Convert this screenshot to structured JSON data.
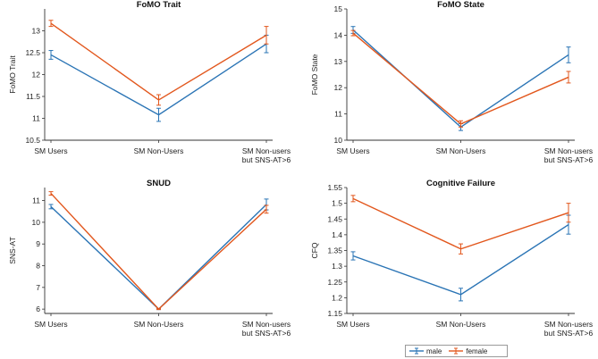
{
  "chart_data": [
    {
      "type": "line",
      "title": "FoMO Trait",
      "ylabel": "FoMO Trait",
      "categories": [
        "SM Users",
        "SM Non-Users",
        "SM Non-users|but SNS-AT>6"
      ],
      "ylim": [
        10.5,
        13.5
      ],
      "yticks": [
        10.5,
        11,
        11.5,
        12,
        12.5,
        13
      ],
      "series": [
        {
          "name": "male",
          "values": [
            12.45,
            11.08,
            12.7
          ],
          "errors": [
            0.1,
            0.15,
            0.2
          ]
        },
        {
          "name": "female",
          "values": [
            13.17,
            11.42,
            12.9
          ],
          "errors": [
            0.07,
            0.12,
            0.2
          ]
        }
      ]
    },
    {
      "type": "line",
      "title": "FoMO State",
      "ylabel": "FoMO State",
      "categories": [
        "SM Users",
        "SM Non-Users",
        "SM Non-users|but SNS-AT>6"
      ],
      "ylim": [
        10,
        15
      ],
      "yticks": [
        10,
        11,
        12,
        13,
        14,
        15
      ],
      "series": [
        {
          "name": "male",
          "values": [
            14.2,
            10.5,
            13.25
          ],
          "errors": [
            0.13,
            0.13,
            0.3
          ]
        },
        {
          "name": "female",
          "values": [
            14.08,
            10.62,
            12.4
          ],
          "errors": [
            0.1,
            0.12,
            0.22
          ]
        }
      ]
    },
    {
      "type": "line",
      "title": "SNUD",
      "ylabel": "SNS-AT",
      "categories": [
        "SM Users",
        "SM Non-Users",
        "SM Non-users|but SNS-AT>6"
      ],
      "ylim": [
        5.8,
        11.6
      ],
      "yticks": [
        6,
        7,
        8,
        9,
        10,
        11
      ],
      "series": [
        {
          "name": "male",
          "values": [
            10.72,
            6.0,
            10.82
          ],
          "errors": [
            0.1,
            0.02,
            0.25
          ]
        },
        {
          "name": "female",
          "values": [
            11.33,
            6.0,
            10.6
          ],
          "errors": [
            0.08,
            0.02,
            0.18
          ]
        }
      ]
    },
    {
      "type": "line",
      "title": "Cognitive Failure",
      "ylabel": "CFQ",
      "categories": [
        "SM Users",
        "SM Non-Users",
        "SM Non-users|but SNS-AT>6"
      ],
      "ylim": [
        1.15,
        1.55
      ],
      "yticks": [
        1.15,
        1.2,
        1.25,
        1.3,
        1.35,
        1.4,
        1.45,
        1.5,
        1.55
      ],
      "series": [
        {
          "name": "male",
          "values": [
            1.333,
            1.21,
            1.432
          ],
          "errors": [
            0.013,
            0.02,
            0.03
          ]
        },
        {
          "name": "female",
          "values": [
            1.515,
            1.355,
            1.47
          ],
          "errors": [
            0.01,
            0.016,
            0.03
          ]
        }
      ]
    }
  ],
  "legend": {
    "entries": [
      {
        "label": "male",
        "color": "#2a74b5"
      },
      {
        "label": "female",
        "color": "#e2571d"
      }
    ]
  }
}
